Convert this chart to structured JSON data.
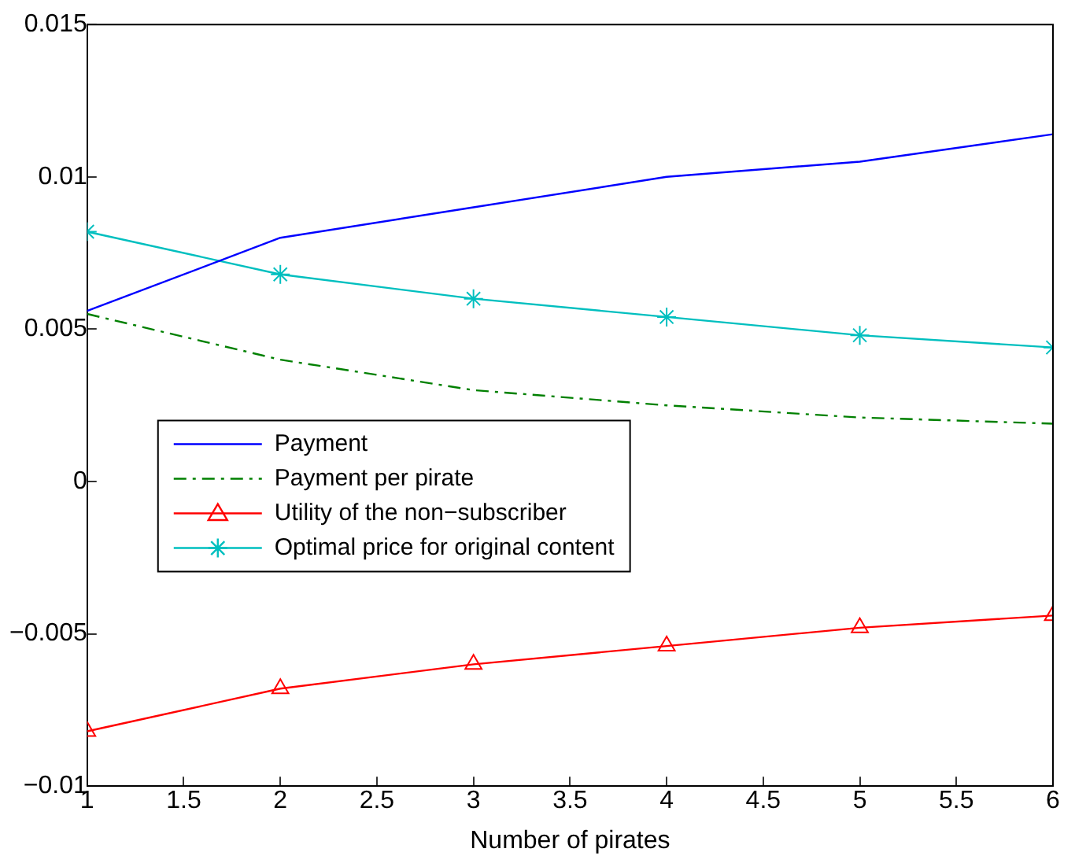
{
  "chart_data": {
    "type": "line",
    "xlabel": "Number of pirates",
    "x": [
      1,
      2,
      3,
      4,
      5,
      6
    ],
    "xlim": [
      1,
      6
    ],
    "xticks": [
      1,
      1.5,
      2,
      2.5,
      3,
      3.5,
      4,
      4.5,
      5,
      5.5,
      6
    ],
    "ylim": [
      -0.01,
      0.015
    ],
    "yticks": [
      {
        "value": -0.01,
        "label": "−0.01"
      },
      {
        "value": -0.005,
        "label": "−0.005"
      },
      0,
      0.005,
      0.01,
      0.015
    ],
    "grid": false,
    "legend": "left",
    "series": [
      {
        "name": "Payment",
        "color": "#0000ff",
        "values": [
          0.0056,
          0.008,
          0.009,
          0.01,
          0.0105,
          0.0114
        ],
        "marker": "none",
        "line_style": "solid"
      },
      {
        "name": "Payment per pirate",
        "color": "#008000",
        "values": [
          0.0055,
          0.004,
          0.003,
          0.0025,
          0.0021,
          0.0019
        ],
        "marker": "none",
        "line_style": "dashdot"
      },
      {
        "name": "Utility of the non−subscriber",
        "color": "#ff0000",
        "values": [
          -0.0082,
          -0.0068,
          -0.006,
          -0.0054,
          -0.0048,
          -0.0044
        ],
        "marker": "triangle",
        "line_style": "solid"
      },
      {
        "name": "Optimal price for original content",
        "color": "#00bfbf",
        "values": [
          0.0082,
          0.0068,
          0.006,
          0.0054,
          0.0048,
          0.0044
        ],
        "marker": "cross",
        "line_style": "solid"
      }
    ]
  }
}
